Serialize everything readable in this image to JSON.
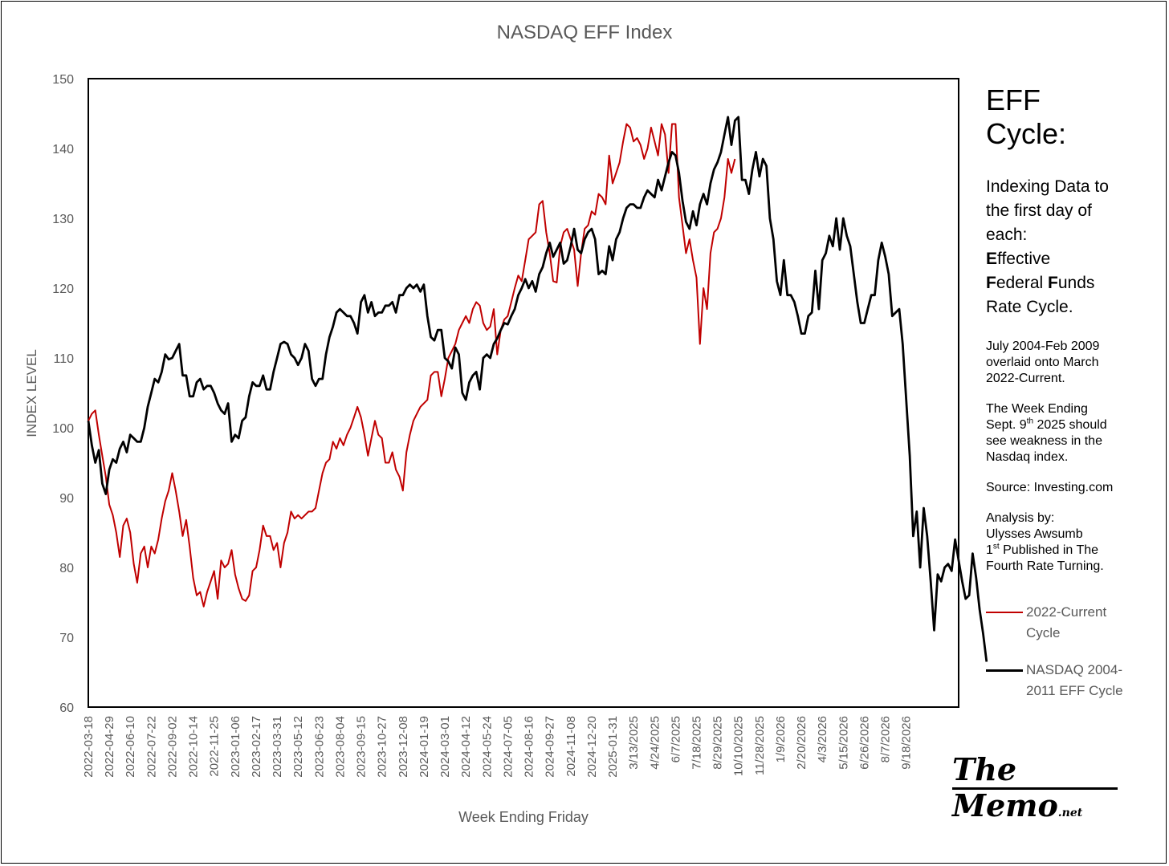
{
  "chart_data": {
    "type": "line",
    "title": "NASDAQ EFF Index",
    "xlabel": "Week Ending Friday",
    "ylabel": "INDEX LEVEL",
    "ylim": [
      60,
      150
    ],
    "y_ticks": [
      60,
      70,
      80,
      90,
      100,
      110,
      120,
      130,
      140,
      150
    ],
    "grid": false,
    "legend_position": "right",
    "x_tick_labels": [
      "2022-03-18",
      "2022-04-29",
      "2022-06-10",
      "2022-07-22",
      "2022-09-02",
      "2022-10-14",
      "2022-11-25",
      "2023-01-06",
      "2023-02-17",
      "2023-03-31",
      "2023-05-12",
      "2023-06-23",
      "2023-08-04",
      "2023-09-15",
      "2023-10-27",
      "2023-12-08",
      "2024-01-19",
      "2024-03-01",
      "2024-04-12",
      "2024-05-24",
      "2024-07-05",
      "2024-08-16",
      "2024-09-27",
      "2024-11-08",
      "2024-12-20",
      "2025-01-31",
      "3/13/2025",
      "4/24/2025",
      "6/7/2025",
      "7/18/2025",
      "8/29/2025",
      "10/10/2025",
      "11/28/2025",
      "1/9/2026",
      "2/20/2026",
      "4/3/2026",
      "5/15/2026",
      "6/26/2026",
      "8/7/2026",
      "9/18/2026"
    ],
    "x_tick_every": 6,
    "n_weeks": 250,
    "series": [
      {
        "name": "2022-Current Cycle",
        "color": "#c00000",
        "values": [
          101,
          102,
          102.5,
          99,
          96,
          93,
          89,
          87.5,
          85,
          81.5,
          86,
          87,
          85,
          80.5,
          77.8,
          82,
          83,
          80,
          83,
          82,
          84,
          87,
          89.5,
          91,
          93.5,
          91,
          88,
          84.5,
          86.8,
          83,
          78.5,
          76,
          76.5,
          74.4,
          76.5,
          78,
          79.5,
          75.5,
          81,
          80,
          80.5,
          82.5,
          79,
          77,
          75.5,
          75.2,
          76,
          79.5,
          80,
          82.5,
          86,
          84.5,
          84.5,
          82.5,
          83.5,
          80,
          83.5,
          85,
          88,
          87,
          87.5,
          87,
          87.5,
          88,
          88,
          88.5,
          91,
          93.5,
          95,
          95.5,
          98,
          97,
          98.5,
          97.5,
          99,
          100,
          101.5,
          103,
          101.5,
          99,
          96,
          98.5,
          101,
          99,
          98.5,
          95,
          95,
          96.5,
          94,
          93,
          91,
          96.5,
          99,
          101,
          102,
          103,
          103.5,
          104,
          107.5,
          108,
          108,
          104.5,
          107,
          110,
          111,
          112,
          114,
          115,
          116,
          115,
          117,
          118,
          117.5,
          115,
          114,
          114.5,
          117,
          110.5,
          114,
          115.5,
          116,
          118,
          120,
          121.8,
          121,
          124,
          127,
          127.5,
          128,
          132,
          132.5,
          128,
          125,
          121,
          120.8,
          126,
          128,
          128.5,
          127,
          125.5,
          120.3,
          125,
          128.5,
          129,
          131,
          130.5,
          133.5,
          133,
          132,
          139,
          135,
          136.5,
          138,
          141,
          143.5,
          143,
          141,
          141.5,
          140.5,
          138.5,
          140,
          143,
          141,
          139,
          143.5,
          142,
          136.5,
          143.5,
          143.5,
          133,
          129,
          125,
          127,
          124,
          121.5,
          112,
          120,
          117,
          125,
          128,
          128.5,
          130,
          133,
          138.5,
          136.5,
          138.5
        ]
      },
      {
        "name": "NASDAQ 2004-2011 EFF Cycle",
        "color": "#000000",
        "values": [
          101,
          97.5,
          95,
          96.8,
          92,
          90.5,
          94,
          95.5,
          95,
          97,
          98,
          96.5,
          99,
          98.5,
          98,
          98,
          100,
          103,
          105,
          107,
          106.5,
          108,
          110.5,
          109.8,
          110,
          111,
          112,
          107.5,
          107.5,
          104.5,
          104.5,
          106.5,
          107,
          105.5,
          106,
          106,
          105,
          103.5,
          102.5,
          102,
          103.5,
          98,
          99,
          98.5,
          101,
          101.5,
          104.5,
          106.5,
          106,
          106,
          107.5,
          105.5,
          105.5,
          108,
          110,
          112,
          112.3,
          112,
          110.5,
          110,
          109,
          110,
          112,
          111,
          107,
          106,
          107,
          107,
          110.5,
          113,
          114.5,
          116.5,
          117,
          116.5,
          116,
          116,
          115,
          113.5,
          118,
          119,
          116.5,
          118,
          116,
          116.5,
          116.5,
          117.5,
          117.5,
          118,
          116.5,
          119,
          119,
          120,
          120.5,
          120,
          120.5,
          119.5,
          120.5,
          116,
          113,
          112.5,
          114,
          114,
          110,
          109.5,
          108.5,
          111.5,
          110.5,
          105,
          104,
          106.5,
          107.5,
          108,
          105.5,
          110,
          110.5,
          110,
          112,
          112.8,
          114,
          115,
          114.8,
          116,
          117,
          119,
          120,
          121.3,
          120,
          121,
          119.5,
          122,
          123,
          125,
          126.5,
          124.5,
          125.5,
          126.5,
          123.5,
          124,
          126,
          128.5,
          125.5,
          125,
          127,
          128,
          128.5,
          127,
          122,
          122.5,
          122,
          126,
          124,
          127,
          128,
          130,
          131.5,
          132,
          132,
          131.5,
          131.5,
          133,
          134,
          133.5,
          133,
          135.5,
          134,
          136,
          138,
          139.5,
          139,
          136.5,
          132.5,
          129.5,
          128.5,
          131,
          129,
          132,
          133.5,
          132,
          135,
          137,
          138,
          139.5,
          142,
          144.5,
          140.5,
          144,
          144.5,
          135.5,
          135.5,
          133.5,
          137,
          139.5,
          136,
          138.5,
          137.5,
          130,
          127,
          121,
          119,
          124,
          119,
          119,
          118,
          116,
          113.5,
          113.5,
          116,
          116.5,
          122.5,
          117,
          124,
          125,
          127.5,
          126,
          130,
          125.5,
          130,
          127.5,
          126,
          122,
          118,
          115,
          115,
          117,
          119,
          119,
          124,
          126.5,
          124.5,
          122,
          116,
          116.5,
          117,
          112,
          104,
          96,
          84.5,
          88,
          80,
          88.5,
          84.5,
          78,
          71,
          79,
          78,
          80,
          80.5,
          79.5,
          84,
          81,
          78,
          75.5,
          76,
          82,
          78.5,
          74,
          70.5,
          66.5
        ]
      }
    ]
  },
  "side_panel": {
    "heading_line1": "EFF",
    "heading_line2": "Cycle:",
    "desc_line1": "Indexing Data to",
    "desc_line2": "the first day of",
    "desc_line3": "each:",
    "eff_e_bold": "E",
    "eff_e_rest": "ffective",
    "eff_f_bold": "F",
    "eff_f_rest": "ederal ",
    "eff_f2_bold": "F",
    "eff_f2_rest": "unds",
    "desc_line6": "Rate Cycle.",
    "overlay_line1": "July 2004-Feb 2009",
    "overlay_line2": "overlaid onto March",
    "overlay_line3": "2022-Current.",
    "week_line1": "The Week Ending",
    "week_line2_pre": "Sept. 9",
    "week_line2_sup": "th",
    "week_line2_post": " 2025 should",
    "week_line3": "see weakness in the",
    "week_line4": "Nasdaq index.",
    "source": "Source: Investing.com",
    "analysis_line1": "Analysis by:",
    "analysis_line2": "Ulysses Awsumb",
    "analysis_line3_sup": "st",
    "analysis_line3_pre": "1",
    "analysis_line3_post": " Published in The",
    "analysis_line4": "Fourth Rate Turning."
  },
  "legend": {
    "red_line1": "2022-Current",
    "red_line2": "Cycle",
    "black_line1": "NASDAQ 2004-",
    "black_line2": "2011 EFF Cycle"
  },
  "logo": {
    "main": "The Memo",
    "suffix": ".net"
  }
}
